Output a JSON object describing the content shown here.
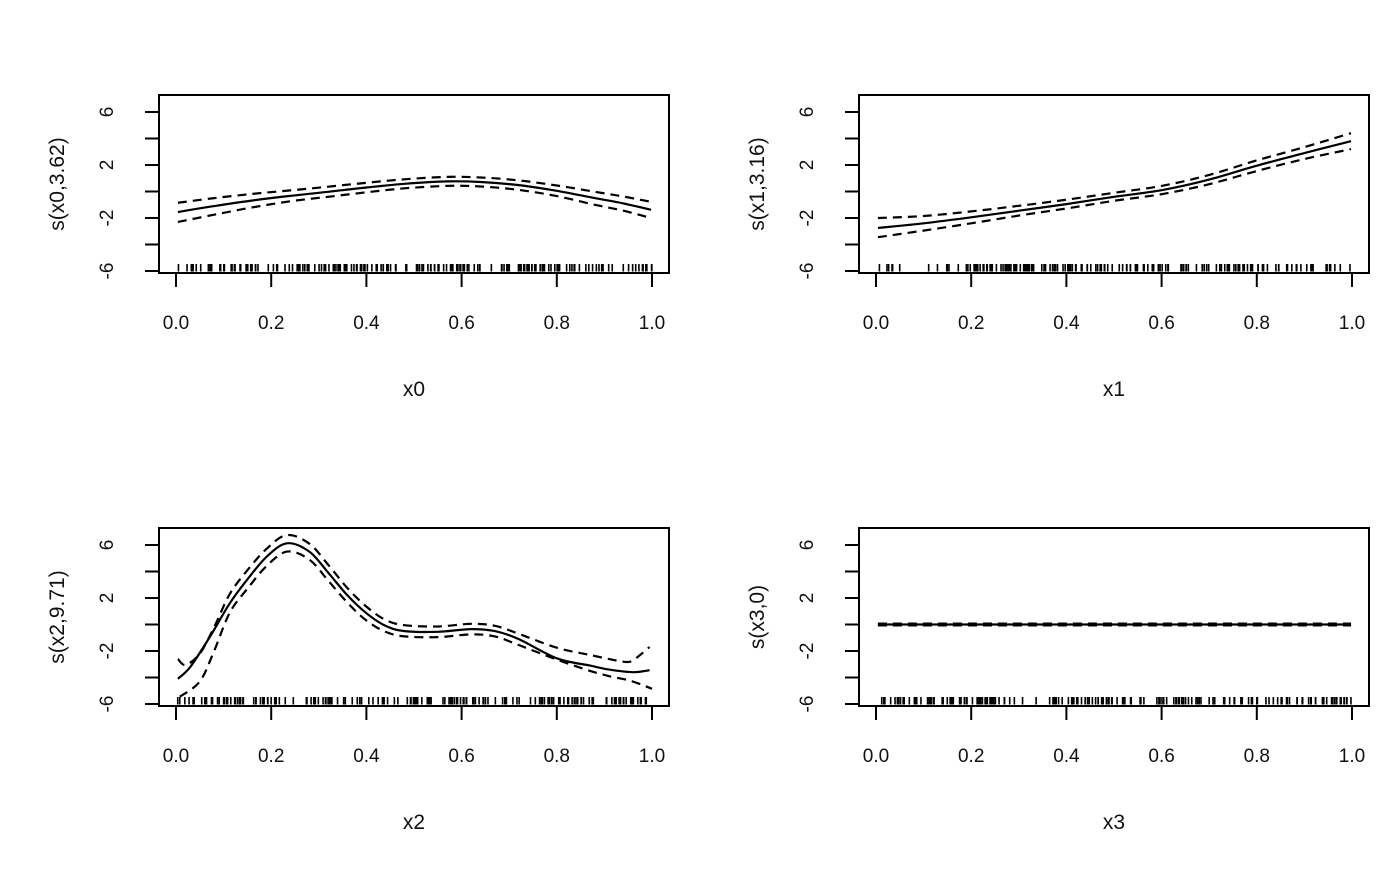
{
  "figure": {
    "background": "#ffffff",
    "line_color": "#000000",
    "text_color": "#111111"
  },
  "chart_data": {
    "type": "line",
    "layout": "2x2-grid",
    "description": "GAM smooth term plots: solid fit line with dashed confidence bands and rug of observations along the x-axis",
    "panels": [
      {
        "id": "x0",
        "ylabel": "s(x0,3.62)",
        "xlabel": "x0",
        "xlim": [
          0,
          1
        ],
        "ylim": [
          -6,
          6
        ],
        "x_ticks": {
          "values": [
            0.0,
            0.2,
            0.4,
            0.6,
            0.8,
            1.0
          ],
          "labels": [
            "0.0",
            "0.2",
            "0.4",
            "0.6",
            "0.8",
            "1.0"
          ]
        },
        "y_ticks": {
          "values": [
            -6,
            -4,
            -2,
            0,
            2,
            4,
            6
          ],
          "labels": [
            "-6",
            "",
            "-2",
            "",
            "2",
            "",
            "6"
          ]
        },
        "series": [
          {
            "name": "fit",
            "style": "solid",
            "points": [
              [
                0.004,
                -1.55
              ],
              [
                0.08,
                -1.1
              ],
              [
                0.16,
                -0.68
              ],
              [
                0.24,
                -0.33
              ],
              [
                0.32,
                -0.02
              ],
              [
                0.4,
                0.3
              ],
              [
                0.48,
                0.58
              ],
              [
                0.57,
                0.76
              ],
              [
                0.64,
                0.72
              ],
              [
                0.72,
                0.48
              ],
              [
                0.8,
                0.05
              ],
              [
                0.88,
                -0.5
              ],
              [
                0.94,
                -0.9
              ],
              [
                0.998,
                -1.38
              ]
            ]
          },
          {
            "name": "upper-ci",
            "style": "dashed",
            "points": [
              [
                0.004,
                -0.85
              ],
              [
                0.08,
                -0.5
              ],
              [
                0.16,
                -0.18
              ],
              [
                0.24,
                0.08
              ],
              [
                0.32,
                0.36
              ],
              [
                0.4,
                0.66
              ],
              [
                0.48,
                0.92
              ],
              [
                0.57,
                1.1
              ],
              [
                0.64,
                1.06
              ],
              [
                0.72,
                0.84
              ],
              [
                0.8,
                0.45
              ],
              [
                0.88,
                -0.02
              ],
              [
                0.94,
                -0.38
              ],
              [
                0.998,
                -0.78
              ]
            ]
          },
          {
            "name": "lower-ci",
            "style": "dashed",
            "points": [
              [
                0.004,
                -2.3
              ],
              [
                0.08,
                -1.75
              ],
              [
                0.16,
                -1.2
              ],
              [
                0.24,
                -0.74
              ],
              [
                0.32,
                -0.4
              ],
              [
                0.4,
                -0.06
              ],
              [
                0.48,
                0.24
              ],
              [
                0.57,
                0.42
              ],
              [
                0.64,
                0.38
              ],
              [
                0.72,
                0.12
              ],
              [
                0.8,
                -0.35
              ],
              [
                0.88,
                -1.0
              ],
              [
                0.94,
                -1.45
              ],
              [
                0.998,
                -2.0
              ]
            ]
          }
        ],
        "rug": {
          "n": 175,
          "distribution": "uniform"
        }
      },
      {
        "id": "x1",
        "ylabel": "s(x1,3.16)",
        "xlabel": "x1",
        "xlim": [
          0,
          1
        ],
        "ylim": [
          -6,
          6
        ],
        "x_ticks": {
          "values": [
            0.0,
            0.2,
            0.4,
            0.6,
            0.8,
            1.0
          ],
          "labels": [
            "0.0",
            "0.2",
            "0.4",
            "0.6",
            "0.8",
            "1.0"
          ]
        },
        "y_ticks": {
          "values": [
            -6,
            -4,
            -2,
            0,
            2,
            4,
            6
          ],
          "labels": [
            "-6",
            "",
            "-2",
            "",
            "2",
            "",
            "6"
          ]
        },
        "series": [
          {
            "name": "fit",
            "style": "solid",
            "points": [
              [
                0.004,
                -2.75
              ],
              [
                0.1,
                -2.4
              ],
              [
                0.2,
                -1.95
              ],
              [
                0.3,
                -1.45
              ],
              [
                0.4,
                -0.95
              ],
              [
                0.5,
                -0.4
              ],
              [
                0.6,
                0.1
              ],
              [
                0.7,
                0.9
              ],
              [
                0.8,
                1.95
              ],
              [
                0.9,
                2.9
              ],
              [
                0.998,
                3.8
              ]
            ]
          },
          {
            "name": "upper-ci",
            "style": "dashed",
            "points": [
              [
                0.004,
                -2.0
              ],
              [
                0.1,
                -1.85
              ],
              [
                0.2,
                -1.5
              ],
              [
                0.3,
                -1.08
              ],
              [
                0.4,
                -0.62
              ],
              [
                0.5,
                -0.1
              ],
              [
                0.6,
                0.42
              ],
              [
                0.7,
                1.25
              ],
              [
                0.8,
                2.35
              ],
              [
                0.9,
                3.35
              ],
              [
                0.998,
                4.4
              ]
            ]
          },
          {
            "name": "lower-ci",
            "style": "dashed",
            "points": [
              [
                0.004,
                -3.45
              ],
              [
                0.1,
                -2.95
              ],
              [
                0.2,
                -2.4
              ],
              [
                0.3,
                -1.82
              ],
              [
                0.4,
                -1.28
              ],
              [
                0.5,
                -0.7
              ],
              [
                0.6,
                -0.2
              ],
              [
                0.7,
                0.55
              ],
              [
                0.8,
                1.55
              ],
              [
                0.9,
                2.45
              ],
              [
                0.998,
                3.2
              ]
            ]
          }
        ],
        "rug": {
          "n": 175,
          "distribution": "uniform"
        }
      },
      {
        "id": "x2",
        "ylabel": "s(x2,9.71)",
        "xlabel": "x2",
        "xlim": [
          0,
          1
        ],
        "ylim": [
          -6,
          6
        ],
        "x_ticks": {
          "values": [
            0.0,
            0.2,
            0.4,
            0.6,
            0.8,
            1.0
          ],
          "labels": [
            "0.0",
            "0.2",
            "0.4",
            "0.6",
            "0.8",
            "1.0"
          ]
        },
        "y_ticks": {
          "values": [
            -6,
            -4,
            -2,
            0,
            2,
            4,
            6
          ],
          "labels": [
            "-6",
            "",
            "-2",
            "",
            "2",
            "",
            "6"
          ]
        },
        "series": [
          {
            "name": "fit",
            "style": "solid",
            "points": [
              [
                0.004,
                -4.1
              ],
              [
                0.03,
                -3.2
              ],
              [
                0.07,
                -1.0
              ],
              [
                0.113,
                1.6
              ],
              [
                0.15,
                3.4
              ],
              [
                0.19,
                5.1
              ],
              [
                0.233,
                6.13
              ],
              [
                0.28,
                5.5
              ],
              [
                0.32,
                3.9
              ],
              [
                0.36,
                2.2
              ],
              [
                0.4,
                0.85
              ],
              [
                0.44,
                -0.1
              ],
              [
                0.48,
                -0.5
              ],
              [
                0.55,
                -0.55
              ],
              [
                0.62,
                -0.35
              ],
              [
                0.67,
                -0.5
              ],
              [
                0.72,
                -1.1
              ],
              [
                0.8,
                -2.55
              ],
              [
                0.87,
                -3.1
              ],
              [
                0.91,
                -3.4
              ],
              [
                0.96,
                -3.6
              ],
              [
                0.995,
                -3.45
              ]
            ]
          },
          {
            "name": "upper-ci",
            "style": "dashed",
            "points": [
              [
                0.004,
                -2.6
              ],
              [
                0.02,
                -3.05
              ],
              [
                0.05,
                -2.2
              ],
              [
                0.08,
                -0.2
              ],
              [
                0.113,
                2.3
              ],
              [
                0.15,
                4.1
              ],
              [
                0.19,
                5.7
              ],
              [
                0.233,
                6.75
              ],
              [
                0.28,
                6.1
              ],
              [
                0.32,
                4.5
              ],
              [
                0.36,
                2.75
              ],
              [
                0.4,
                1.35
              ],
              [
                0.44,
                0.35
              ],
              [
                0.48,
                -0.05
              ],
              [
                0.55,
                -0.15
              ],
              [
                0.62,
                0.05
              ],
              [
                0.67,
                -0.1
              ],
              [
                0.72,
                -0.7
              ],
              [
                0.8,
                -1.75
              ],
              [
                0.87,
                -2.3
              ],
              [
                0.93,
                -2.75
              ],
              [
                0.955,
                -2.8
              ],
              [
                0.975,
                -2.3
              ],
              [
                0.995,
                -1.7
              ]
            ]
          },
          {
            "name": "lower-ci",
            "style": "dashed",
            "points": [
              [
                0.008,
                -5.45
              ],
              [
                0.05,
                -4.3
              ],
              [
                0.08,
                -2.0
              ],
              [
                0.113,
                0.9
              ],
              [
                0.15,
                2.7
              ],
              [
                0.19,
                4.4
              ],
              [
                0.233,
                5.5
              ],
              [
                0.28,
                4.9
              ],
              [
                0.32,
                3.3
              ],
              [
                0.36,
                1.65
              ],
              [
                0.4,
                0.3
              ],
              [
                0.44,
                -0.55
              ],
              [
                0.48,
                -0.9
              ],
              [
                0.55,
                -0.95
              ],
              [
                0.62,
                -0.75
              ],
              [
                0.67,
                -0.9
              ],
              [
                0.72,
                -1.55
              ],
              [
                0.8,
                -2.65
              ],
              [
                0.87,
                -3.5
              ],
              [
                0.91,
                -3.9
              ],
              [
                0.95,
                -4.2
              ],
              [
                0.975,
                -4.5
              ],
              [
                1.0,
                -4.85
              ]
            ]
          }
        ],
        "rug": {
          "n": 175,
          "distribution": "uniform"
        }
      },
      {
        "id": "x3",
        "ylabel": "s(x3,0)",
        "xlabel": "x3",
        "xlim": [
          0,
          1
        ],
        "ylim": [
          -6,
          6
        ],
        "x_ticks": {
          "values": [
            0.0,
            0.2,
            0.4,
            0.6,
            0.8,
            1.0
          ],
          "labels": [
            "0.0",
            "0.2",
            "0.4",
            "0.6",
            "0.8",
            "1.0"
          ]
        },
        "y_ticks": {
          "values": [
            -6,
            -4,
            -2,
            0,
            2,
            4,
            6
          ],
          "labels": [
            "-6",
            "",
            "-2",
            "",
            "2",
            "",
            "6"
          ]
        },
        "series": [
          {
            "name": "fit",
            "style": "solid",
            "points": [
              [
                0.004,
                0
              ],
              [
                0.998,
                0
              ]
            ]
          },
          {
            "name": "upper-ci",
            "style": "dashed",
            "points": [
              [
                0.004,
                0.07
              ],
              [
                0.998,
                0.07
              ]
            ]
          },
          {
            "name": "lower-ci",
            "style": "dashed",
            "points": [
              [
                0.004,
                -0.07
              ],
              [
                0.998,
                -0.07
              ]
            ]
          }
        ],
        "rug": {
          "n": 175,
          "distribution": "uniform"
        }
      }
    ]
  }
}
